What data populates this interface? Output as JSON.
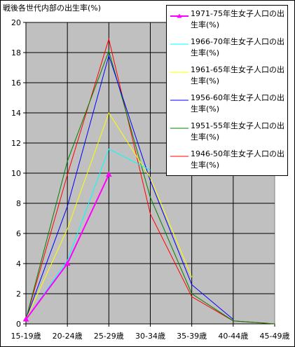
{
  "title": "戦後各世代内部の出生率(%)",
  "chart_data": {
    "type": "line",
    "title": "戦後各世代内部の出生率(%)",
    "categories": [
      "15-19歳",
      "20-24歳",
      "25-29歳",
      "30-34歳",
      "35-39歳",
      "40-44歳",
      "45-49歳"
    ],
    "ylim": [
      0,
      20
    ],
    "yticks": [
      0,
      2,
      4,
      6,
      8,
      10,
      12,
      14,
      16,
      18,
      20
    ],
    "grid": true,
    "legend_position": "top-right",
    "plot_background": "#c0c0c0",
    "series": [
      {
        "name": "1971-75年生女子人口の出生率(%)",
        "color": "#ff00ff",
        "marker": "triangle",
        "values": [
          0.3,
          4.0,
          9.9,
          null,
          null,
          null,
          null
        ]
      },
      {
        "name": "1966-70年生女子人口の出生率(%)",
        "color": "#00ffff",
        "marker": "none",
        "values": [
          0.3,
          4.2,
          11.6,
          10.2,
          null,
          null,
          null
        ]
      },
      {
        "name": "1961-65年生女子人口の出生率(%)",
        "color": "#ffff00",
        "marker": "none",
        "values": [
          0.3,
          6.3,
          14.0,
          9.7,
          3.1,
          null,
          null
        ]
      },
      {
        "name": "1956-60年生女子人口の出生率(%)",
        "color": "#0000ff",
        "marker": "none",
        "values": [
          0.3,
          7.8,
          17.8,
          9.5,
          2.6,
          0.3,
          null
        ]
      },
      {
        "name": "1951-55年生女子人口の出生率(%)",
        "color": "#008000",
        "marker": "none",
        "values": [
          0.3,
          10.8,
          18.1,
          8.4,
          2.0,
          0.2,
          0.0
        ]
      },
      {
        "name": "1946-50年生女子人口の出生率(%)",
        "color": "#ff0000",
        "marker": "none",
        "values": [
          0.3,
          9.9,
          18.9,
          7.3,
          1.8,
          0.2,
          0.0
        ]
      }
    ]
  }
}
